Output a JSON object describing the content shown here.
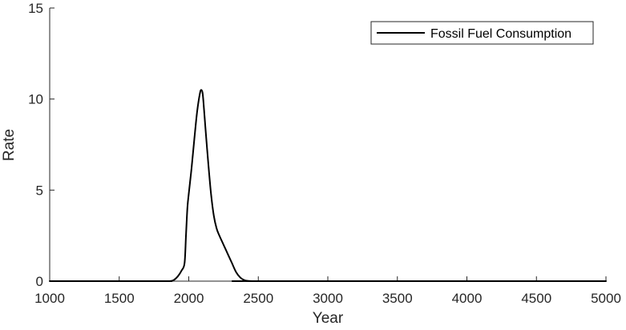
{
  "chart_data": {
    "type": "line",
    "title": "",
    "xlabel": "Year",
    "ylabel": "Rate",
    "xlim": [
      1000,
      5000
    ],
    "ylim": [
      0,
      15
    ],
    "xticks": [
      1000,
      1500,
      2000,
      2500,
      3000,
      3500,
      4000,
      4500,
      5000
    ],
    "yticks": [
      0,
      5,
      10,
      15
    ],
    "grid": false,
    "legend_position": "top-right",
    "series": [
      {
        "name": "Fossil Fuel Consumption",
        "color": "#000000",
        "x": [
          1000,
          1800,
          1860,
          1890,
          1920,
          1950,
          1970,
          1980,
          1990,
          2000,
          2020,
          2040,
          2060,
          2080,
          2090,
          2100,
          2110,
          2120,
          2140,
          2160,
          2180,
          2200,
          2220,
          2250,
          2280,
          2310,
          2340,
          2370,
          2400,
          2430,
          2460,
          2490,
          2500,
          5000
        ],
        "y": [
          0,
          0,
          0,
          0.05,
          0.25,
          0.6,
          1.0,
          2.5,
          4.0,
          4.8,
          6.2,
          7.8,
          9.3,
          10.3,
          10.5,
          10.3,
          9.4,
          8.4,
          6.5,
          4.8,
          3.6,
          2.9,
          2.5,
          2.0,
          1.5,
          1.0,
          0.5,
          0.2,
          0.05,
          0.01,
          0,
          0,
          0,
          0
        ]
      }
    ]
  }
}
